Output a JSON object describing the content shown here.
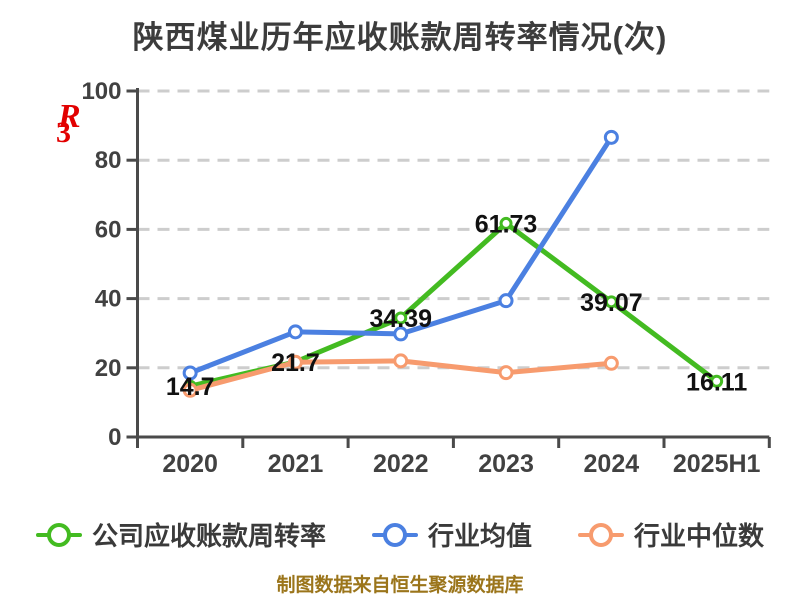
{
  "title": "陕西煤业历年应收账款周转率情况(次)",
  "watermark": {
    "glyphs": [
      "R",
      "3"
    ],
    "color": "#e20000"
  },
  "chart_data": {
    "type": "line",
    "title": "陕西煤业历年应收账款周转率情况(次)",
    "categories": [
      "2020",
      "2021",
      "2022",
      "2023",
      "2024",
      "2025H1"
    ],
    "series": [
      {
        "name": "公司应收账款周转率",
        "color": "#43bb21",
        "values": [
          14.7,
          21.7,
          34.39,
          61.73,
          39.07,
          16.11
        ],
        "labels": [
          "14.7",
          "21.7",
          "34.39",
          "61.73",
          "39.07",
          "16.11"
        ],
        "marker": "circle-white-fill"
      },
      {
        "name": "行业均值",
        "color": "#4b80e1",
        "values": [
          18.5,
          30.4,
          29.8,
          39.4,
          86.6
        ],
        "labels": [],
        "marker": "circle-white-fill"
      },
      {
        "name": "行业中位数",
        "color": "#f79b6e",
        "values": [
          13.5,
          21.6,
          22.0,
          18.6,
          21.3
        ],
        "labels": [],
        "marker": "circle-white-fill"
      }
    ],
    "ylim": [
      0,
      100
    ],
    "yticks": [
      0,
      20,
      40,
      60,
      80,
      100
    ],
    "xlabel": "",
    "ylabel": "",
    "grid": "horizontal-dashed",
    "legend_position": "bottom",
    "colors": {
      "grid": "#cdcdcd",
      "axis": "#4a4a4a",
      "tick_label": "#414141",
      "data_label": "#111111"
    }
  },
  "footer": {
    "text": "制图数据来自恒生聚源数据库"
  }
}
